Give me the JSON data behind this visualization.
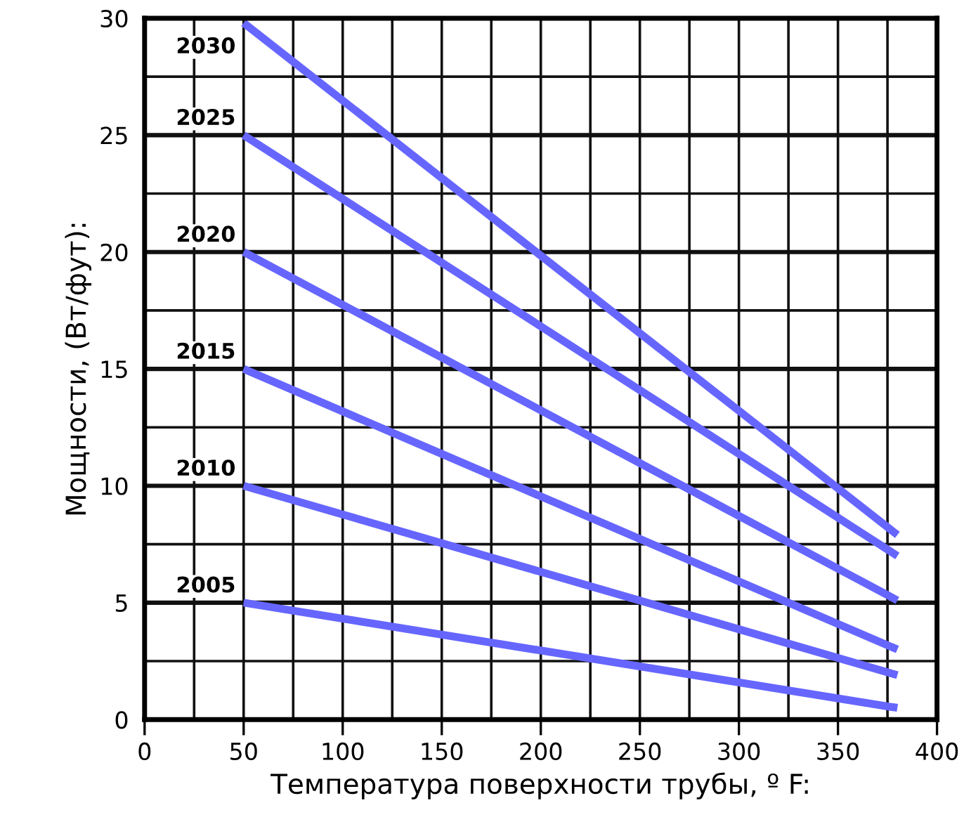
{
  "chart_data": {
    "type": "line",
    "xlabel": "Температура поверхности трубы, º F:",
    "ylabel": "Мощности, (Вт/фут):",
    "x": [
      50,
      380
    ],
    "series": [
      {
        "name": "2030",
        "color": "#6666ff",
        "values": [
          29.8,
          7.9
        ]
      },
      {
        "name": "2025",
        "color": "#6666ff",
        "values": [
          25,
          7.0
        ]
      },
      {
        "name": "2020",
        "color": "#6666ff",
        "values": [
          20,
          5.1
        ]
      },
      {
        "name": "2015",
        "color": "#6666ff",
        "values": [
          15,
          3.0
        ]
      },
      {
        "name": "2010",
        "color": "#6666ff",
        "values": [
          10,
          1.9
        ]
      },
      {
        "name": "2005",
        "color": "#6666ff",
        "values": [
          5,
          0.5
        ]
      }
    ],
    "xlim": [
      0,
      400
    ],
    "xticks": [
      0,
      {
        "value": 25,
        "label": null
      },
      50,
      {
        "value": 75,
        "label": null
      },
      100,
      {
        "value": 125,
        "label": null
      },
      150,
      {
        "value": 175,
        "label": null
      },
      200,
      {
        "value": 225,
        "label": null
      },
      250,
      {
        "value": 275,
        "label": null
      },
      300,
      {
        "value": 325,
        "label": null
      },
      350,
      {
        "value": 375,
        "label": null
      },
      400
    ],
    "ylim": [
      0,
      30
    ],
    "yticks": [
      0,
      {
        "value": 2.5,
        "label": null
      },
      5,
      {
        "value": 7.5,
        "label": null
      },
      10,
      {
        "value": 12.5,
        "label": null
      },
      15,
      {
        "value": 17.5,
        "label": null
      },
      20,
      {
        "value": 22.5,
        "label": null
      },
      25,
      {
        "value": 27.5,
        "label": null
      },
      30
    ],
    "grid": true,
    "legend": false,
    "marker": "none",
    "line_style": "solid"
  }
}
